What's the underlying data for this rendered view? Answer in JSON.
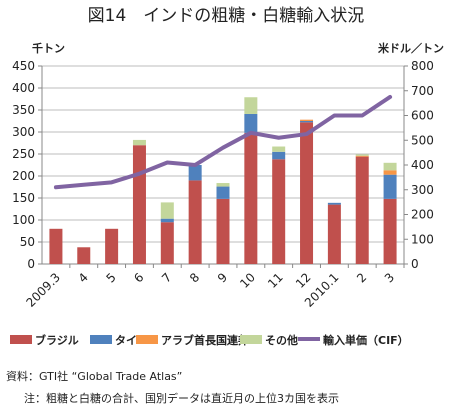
{
  "chart_data": {
    "type": "bar",
    "title": "図14　インドの粗糖・白糖輸入状況",
    "ylabel_left": "千トン",
    "ylabel_right": "米ドル／トン",
    "ylim_left": [
      0,
      450
    ],
    "yticks_left": [
      0,
      50,
      100,
      150,
      200,
      250,
      300,
      350,
      400,
      450
    ],
    "ylim_right": [
      0,
      800
    ],
    "yticks_right": [
      0,
      100,
      200,
      300,
      400,
      500,
      600,
      700,
      800
    ],
    "categories": [
      "2009.3",
      "4",
      "5",
      "6",
      "7",
      "8",
      "9",
      "10",
      "11",
      "12",
      "2010.1",
      "2",
      "3"
    ],
    "stacked": true,
    "series": [
      {
        "name": "ブラジル",
        "color": "#c0504d",
        "values": [
          80,
          38,
          80,
          270,
          95,
          190,
          148,
          298,
          238,
          322,
          135,
          244,
          148
        ]
      },
      {
        "name": "タイ",
        "color": "#4f81bd",
        "values": [
          0,
          0,
          0,
          0,
          8,
          35,
          28,
          43,
          17,
          3,
          4,
          0,
          55
        ]
      },
      {
        "name": "アラブ首長国連邦",
        "color": "#f79646",
        "values": [
          0,
          0,
          0,
          0,
          0,
          0,
          0,
          0,
          0,
          3,
          0,
          2,
          10
        ]
      },
      {
        "name": "その他",
        "color": "#c3d69b",
        "values": [
          0,
          0,
          0,
          12,
          37,
          0,
          8,
          38,
          12,
          0,
          0,
          3,
          17
        ]
      }
    ],
    "line": {
      "name": "輸入単価（CIF）",
      "color": "#8064a2",
      "axis": "right",
      "values": [
        310,
        320,
        330,
        365,
        410,
        400,
        470,
        530,
        510,
        525,
        600,
        600,
        675
      ]
    },
    "grid": true,
    "legend_position": "bottom"
  },
  "notes": {
    "source": "資料：GTI社 “Global Trade Atlas”",
    "note": "注：粗糖と白糖の合計、国別データは直近月の上位3カ国を表示"
  }
}
